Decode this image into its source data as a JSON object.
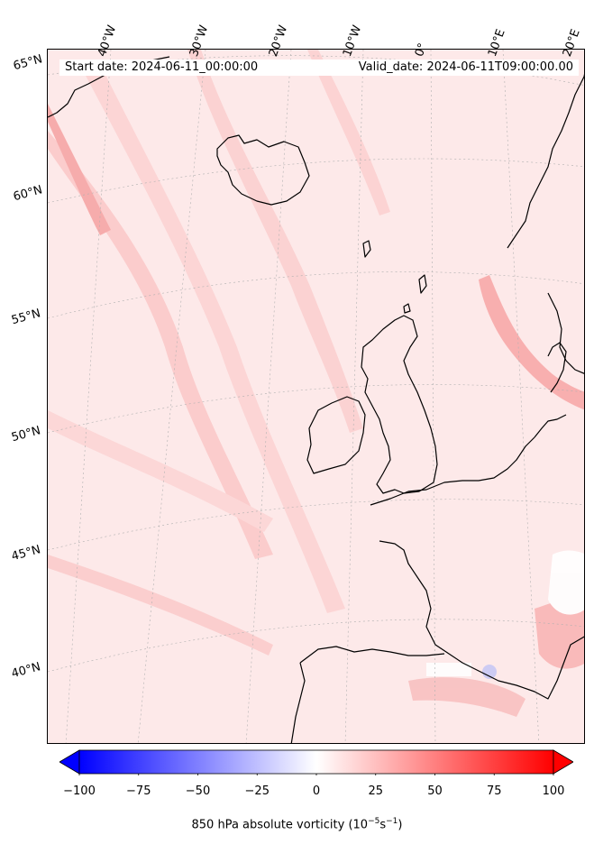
{
  "header": {
    "start_date": "Start date: 2024-06-11_00:00:00",
    "valid_date": "Valid_date: 2024-06-11T09:00:00.00"
  },
  "longitude_labels": [
    "40°W",
    "30°W",
    "20°W",
    "10°W",
    "0°",
    "10°E",
    "20°E"
  ],
  "latitude_labels": [
    "65°N",
    "60°N",
    "55°N",
    "50°N",
    "45°N",
    "40°N"
  ],
  "colorbar": {
    "ticks": [
      "−100",
      "−75",
      "−50",
      "−25",
      "0",
      "25",
      "50",
      "75",
      "100"
    ],
    "min": -100,
    "max": 100,
    "extend": "both",
    "colormap": "bwr",
    "low_color": "#0000ff",
    "mid_color": "#ffffff",
    "high_color": "#ff0000",
    "label_main": "850 hPa absolute vorticity (10",
    "label_exp1": "−5",
    "label_mid": "s",
    "label_exp2": "−1",
    "label_end": ")"
  },
  "map": {
    "field": "850 hPa absolute vorticity",
    "background_color": "#fde9e9",
    "coastline_color": "#000000",
    "gridline_color": "#b0b0b0"
  }
}
